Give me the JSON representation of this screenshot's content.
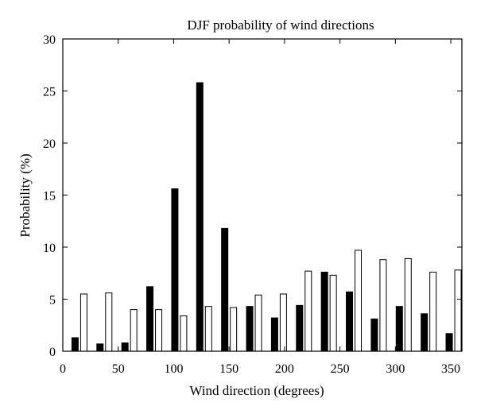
{
  "chart_data": {
    "type": "bar",
    "title": "DJF probability of wind directions",
    "xlabel": "Wind direction (degrees)",
    "ylabel": "Probability (%)",
    "xlim": [
      0,
      360
    ],
    "ylim": [
      0,
      30
    ],
    "xticks": [
      0,
      50,
      100,
      150,
      200,
      250,
      300,
      350
    ],
    "yticks": [
      0,
      5,
      10,
      15,
      20,
      25,
      30
    ],
    "grid": false,
    "categories": [
      15,
      37.5,
      60,
      82.5,
      105,
      127.5,
      150,
      172.5,
      195,
      217.5,
      240,
      262.5,
      285,
      307.5,
      330,
      352.5
    ],
    "series": [
      {
        "color": "#000000",
        "values": [
          1.3,
          0.7,
          0.8,
          6.2,
          15.6,
          25.8,
          11.8,
          4.3,
          3.2,
          4.4,
          7.6,
          5.7,
          3.1,
          4.3,
          3.6,
          1.7
        ]
      },
      {
        "color": "#ffffff",
        "values": [
          5.5,
          5.6,
          4.0,
          4.0,
          3.4,
          4.3,
          4.2,
          5.4,
          5.5,
          7.7,
          7.3,
          9.7,
          8.8,
          8.9,
          7.6,
          7.8
        ]
      }
    ]
  }
}
